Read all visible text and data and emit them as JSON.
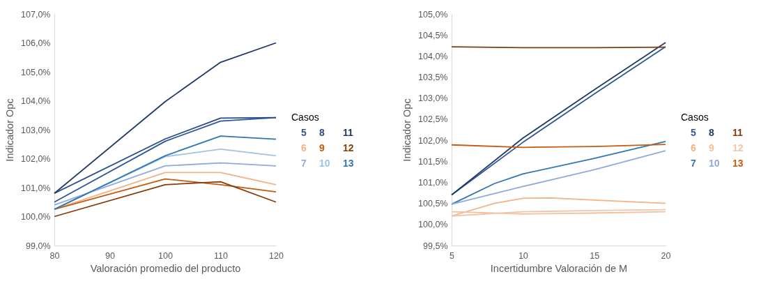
{
  "chart_data": [
    {
      "type": "line",
      "xlabel": "Valoración promedio del producto",
      "ylabel": "Indicador Opc",
      "legend_title": "Casos",
      "legend": "right",
      "grid": false,
      "xlim": [
        80,
        120
      ],
      "xticks": [
        80,
        90,
        100,
        110,
        120
      ],
      "ylim": [
        99,
        107
      ],
      "yticks": [
        {
          "value": 99,
          "label": "99,0%"
        },
        {
          "value": 100,
          "label": "100,0%"
        },
        {
          "value": 101,
          "label": "101,0%"
        },
        {
          "value": 102,
          "label": "102,0%"
        },
        {
          "value": 103,
          "label": "103,0%"
        },
        {
          "value": 104,
          "label": "104,0%"
        },
        {
          "value": 105,
          "label": "105,0%"
        },
        {
          "value": 106,
          "label": "106,0%"
        },
        {
          "value": 107,
          "label": "107,0%"
        }
      ],
      "x": [
        80,
        100,
        110,
        120
      ],
      "series": [
        {
          "name": "5",
          "color": "#2f5597",
          "values": [
            100.5,
            102.6,
            103.3,
            103.42
          ]
        },
        {
          "name": "6",
          "color": "#f4b183",
          "values": [
            100.25,
            101.52,
            101.52,
            101.1
          ]
        },
        {
          "name": "7",
          "color": "#8faadc",
          "values": [
            100.4,
            101.75,
            101.85,
            101.75
          ]
        },
        {
          "name": "8",
          "color": "#284a86",
          "values": [
            100.8,
            102.68,
            103.4,
            103.42
          ]
        },
        {
          "name": "9",
          "color": "#c55a11",
          "values": [
            100.25,
            101.3,
            101.1,
            100.85
          ]
        },
        {
          "name": "10",
          "color": "#9dc3e6",
          "values": [
            100.25,
            102.07,
            102.33,
            102.1
          ]
        },
        {
          "name": "11",
          "color": "#203864",
          "values": [
            100.8,
            103.97,
            105.33,
            106.0
          ]
        },
        {
          "name": "12",
          "color": "#843c0c",
          "values": [
            100.0,
            101.1,
            101.2,
            100.5
          ]
        },
        {
          "name": "13",
          "color": "#2e75b6",
          "values": [
            100.25,
            102.1,
            102.78,
            102.67
          ]
        }
      ]
    },
    {
      "type": "line",
      "xlabel": "Incertidumbre Valoración de M",
      "ylabel": "Indicador Opc",
      "legend_title": "Casos",
      "legend": "right",
      "grid": false,
      "xlim": [
        5,
        20
      ],
      "xticks": [
        5,
        10,
        15,
        20
      ],
      "ylim": [
        99.5,
        105
      ],
      "yticks": [
        {
          "value": 99.5,
          "label": "99,5%"
        },
        {
          "value": 100,
          "label": "100,0%"
        },
        {
          "value": 100.5,
          "label": "100,5%"
        },
        {
          "value": 101,
          "label": "101,0%"
        },
        {
          "value": 101.5,
          "label": "101,5%"
        },
        {
          "value": 102,
          "label": "102,0%"
        },
        {
          "value": 102.5,
          "label": "102,5%"
        },
        {
          "value": 103,
          "label": "103,0%"
        },
        {
          "value": 103.5,
          "label": "103,5%"
        },
        {
          "value": 104,
          "label": "104,0%"
        },
        {
          "value": 104.5,
          "label": "104,5%"
        },
        {
          "value": 105,
          "label": "105,0%"
        }
      ],
      "series": [
        {
          "name": "5",
          "color": "#2f5597",
          "x": [
            5,
            10,
            15,
            20
          ],
          "values": [
            100.7,
            101.95,
            103.1,
            104.22
          ]
        },
        {
          "name": "6",
          "color": "#f4b183",
          "x": [
            5,
            8,
            10,
            12,
            15,
            20
          ],
          "values": [
            100.2,
            100.5,
            100.62,
            100.63,
            100.58,
            100.5
          ]
        },
        {
          "name": "7",
          "color": "#2e75b6",
          "x": [
            5,
            8,
            10,
            15,
            20
          ],
          "values": [
            100.48,
            100.97,
            101.2,
            101.57,
            101.97
          ]
        },
        {
          "name": "8",
          "color": "#203864",
          "x": [
            5,
            10,
            15,
            20
          ],
          "values": [
            100.7,
            102.05,
            103.2,
            104.32
          ]
        },
        {
          "name": "9",
          "color": "#f5c09a",
          "x": [
            5,
            10,
            15,
            20
          ],
          "values": [
            100.3,
            100.25,
            100.27,
            100.3
          ]
        },
        {
          "name": "10",
          "color": "#8faadc",
          "x": [
            5,
            10,
            15,
            20
          ],
          "values": [
            100.48,
            100.9,
            101.3,
            101.75
          ]
        },
        {
          "name": "11",
          "color": "#843c0c",
          "x": [
            5,
            10,
            15,
            20
          ],
          "values": [
            104.22,
            104.2,
            104.2,
            104.21
          ]
        },
        {
          "name": "12",
          "color": "#ecc6ad",
          "x": [
            5,
            10,
            15,
            20
          ],
          "values": [
            100.2,
            100.3,
            100.33,
            100.35
          ]
        },
        {
          "name": "13",
          "color": "#c55a11",
          "x": [
            5,
            10,
            15,
            20
          ],
          "values": [
            101.89,
            101.83,
            101.85,
            101.9
          ]
        }
      ]
    }
  ]
}
